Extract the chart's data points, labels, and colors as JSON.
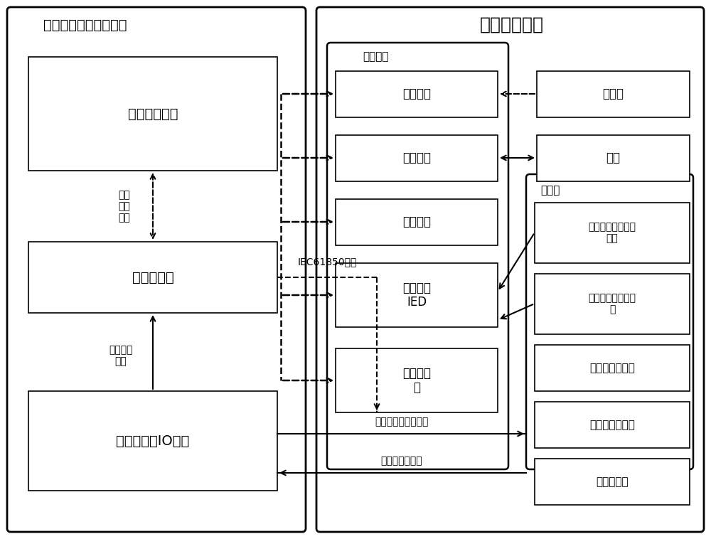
{
  "title_left": "智能开关检测调试系统",
  "title_right": "智能开关设备",
  "label_zhineng_zujian": "智能组件",
  "label_chuanganqi": "传感器",
  "box_xitong": "系统联调装置",
  "box_wangluo_left": "网络交换机",
  "box_chuanganqi_io": "传感器信号IO装置",
  "box_hebing": "合并单元",
  "box_zhineng_zhongduan": "智能终端",
  "box_cekong": "测控装置",
  "box_zhuangtai": "状态监测\nIED",
  "box_wangluo_mid": "网络交换\n机",
  "box_huganqi": "互感器",
  "box_jigou": "机构",
  "box_fenhejian": "分合闸线圈电流传\n感器",
  "box_chuneng": "储能电机电流传感\n器",
  "box_chutou": "触头位移传感器",
  "box_qiti": "气体状态传感器",
  "box_jufang": "局放传感器",
  "text_wangluo_baowenshoufa": "网络\n报文\n收发",
  "text_shijie_jieguo": "测试结果\n文件",
  "text_IEC": "IEC61850报文",
  "text_moni": "传感器信号模拟输出",
  "text_jiance": "传感器信号检测",
  "bg_color": "#ffffff"
}
